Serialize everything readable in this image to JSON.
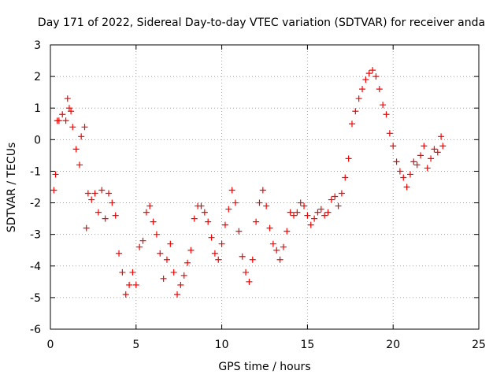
{
  "chart_data": {
    "type": "scatter",
    "title": "Day 171 of 2022, Sidereal Day-to-day VTEC variation (SDTVAR) for receiver anda",
    "xlabel": "GPS time / hours",
    "ylabel": "SDTVAR / TECUs",
    "xlim": [
      0,
      25
    ],
    "ylim": [
      -6,
      3
    ],
    "xticks": [
      0,
      5,
      10,
      15,
      20,
      25
    ],
    "yticks": [
      -6,
      -5,
      -4,
      -3,
      -2,
      -1,
      0,
      1,
      2,
      3
    ],
    "grid": true,
    "marker": "+",
    "color": "#ff0000",
    "series": [
      {
        "name": "SDTVAR",
        "x": [
          0.2,
          0.3,
          0.4,
          0.5,
          0.7,
          0.9,
          1.0,
          1.1,
          1.2,
          1.3,
          1.5,
          1.7,
          1.8,
          2.0,
          2.1,
          2.2,
          2.4,
          2.6,
          2.8,
          3.0,
          3.2,
          3.4,
          3.6,
          3.8,
          4.0,
          4.2,
          4.4,
          4.6,
          4.8,
          5.0,
          5.2,
          5.4,
          5.6,
          5.8,
          6.0,
          6.2,
          6.4,
          6.6,
          6.8,
          7.0,
          7.2,
          7.4,
          7.6,
          7.8,
          8.0,
          8.2,
          8.4,
          8.6,
          8.8,
          9.0,
          9.2,
          9.4,
          9.6,
          9.8,
          10.0,
          10.2,
          10.4,
          10.6,
          10.8,
          11.0,
          11.2,
          11.4,
          11.6,
          11.8,
          12.0,
          12.2,
          12.4,
          12.6,
          12.8,
          13.0,
          13.2,
          13.4,
          13.6,
          13.8,
          14.0,
          14.2,
          14.4,
          14.6,
          14.8,
          15.0,
          15.2,
          15.4,
          15.6,
          15.8,
          16.0,
          16.2,
          16.4,
          16.6,
          16.8,
          17.0,
          17.2,
          17.4,
          17.6,
          17.8,
          18.0,
          18.2,
          18.4,
          18.6,
          18.8,
          19.0,
          19.2,
          19.4,
          19.6,
          19.8,
          20.0,
          20.2,
          20.4,
          20.6,
          20.8,
          21.0,
          21.2,
          21.4,
          21.6,
          21.8,
          22.0,
          22.2,
          22.4,
          22.6,
          22.8,
          22.9
        ],
        "y": [
          -1.6,
          -1.1,
          0.6,
          0.6,
          0.8,
          0.6,
          1.3,
          1.0,
          0.9,
          0.4,
          -0.3,
          -0.8,
          0.1,
          0.4,
          -2.8,
          -1.7,
          -1.9,
          -1.7,
          -2.3,
          -1.6,
          -2.5,
          -1.7,
          -2.0,
          -2.4,
          -3.6,
          -4.2,
          -4.9,
          -4.6,
          -4.2,
          -4.6,
          -3.4,
          -3.2,
          -2.3,
          -2.1,
          -2.6,
          -3.0,
          -3.6,
          -4.4,
          -3.8,
          -3.3,
          -4.2,
          -4.9,
          -4.6,
          -4.3,
          -3.9,
          -3.5,
          -2.5,
          -2.1,
          -2.1,
          -2.3,
          -2.6,
          -3.1,
          -3.6,
          -3.8,
          -3.3,
          -2.7,
          -2.2,
          -1.6,
          -2.0,
          -2.9,
          -3.7,
          -4.2,
          -4.5,
          -3.8,
          -2.6,
          -2.0,
          -1.6,
          -2.1,
          -2.8,
          -3.3,
          -3.5,
          -3.8,
          -3.4,
          -2.9,
          -2.3,
          -2.4,
          -2.3,
          -2.0,
          -2.1,
          -2.4,
          -2.7,
          -2.5,
          -2.3,
          -2.2,
          -2.4,
          -2.3,
          -1.9,
          -1.8,
          -2.1,
          -1.7,
          -1.2,
          -0.6,
          0.5,
          0.9,
          1.3,
          1.6,
          1.9,
          2.1,
          2.2,
          2.0,
          1.6,
          1.1,
          0.8,
          0.2,
          -0.2,
          -0.7,
          -1.0,
          -1.2,
          -1.5,
          -1.1,
          -0.7,
          -0.8,
          -0.5,
          -0.2,
          -0.9,
          -0.6,
          -0.3,
          -0.4,
          0.1,
          -0.2
        ]
      }
    ]
  }
}
